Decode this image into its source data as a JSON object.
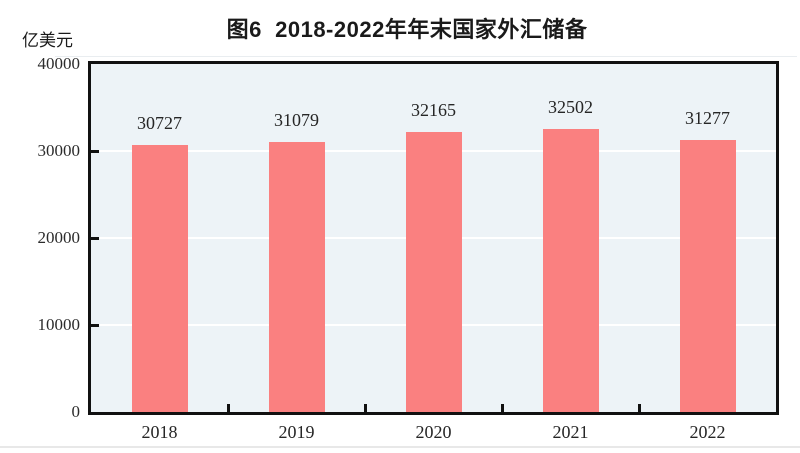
{
  "chart_data": {
    "type": "bar",
    "title": "图6  2018-2022年年末国家外汇储备",
    "unit_label": "亿美元",
    "categories": [
      "2018",
      "2019",
      "2020",
      "2021",
      "2022"
    ],
    "values": [
      30727,
      31079,
      32165,
      32502,
      31277
    ],
    "value_labels": [
      "30727",
      "31079",
      "32165",
      "32502",
      "31277"
    ],
    "ylim": [
      0,
      40000
    ],
    "yticks": [
      0,
      10000,
      20000,
      30000,
      40000
    ],
    "ytick_labels": [
      "0",
      "10000",
      "20000",
      "30000",
      "40000"
    ],
    "grid": true,
    "legend_position": "none",
    "colors": {
      "bar": "#fa8080",
      "plot_background": "#edf3f7",
      "gridline": "#ffffff",
      "axis": "#111111",
      "text": "#262626"
    }
  }
}
